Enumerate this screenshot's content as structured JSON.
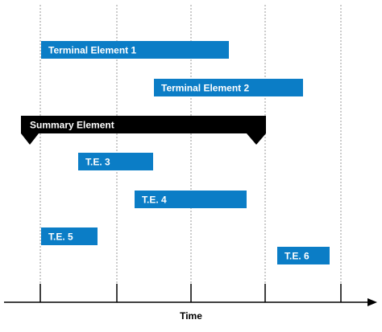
{
  "diagram": {
    "type": "timeline / gantt-style schedule",
    "axis": {
      "label": "Time",
      "tick_count": 5
    },
    "colors": {
      "terminal_bar": "#0b7dc6",
      "summary_bar": "#000000",
      "bar_text": "#ffffff",
      "gridline": "#999999",
      "axis": "#000000"
    },
    "summary_element": {
      "label": "Summary Element"
    },
    "terminal_elements": [
      {
        "label": "Terminal Element 1"
      },
      {
        "label": "Terminal Element 2"
      },
      {
        "label": "T.E. 3"
      },
      {
        "label": "T.E. 4"
      },
      {
        "label": "T.E. 5"
      },
      {
        "label": "T.E. 6"
      }
    ]
  }
}
